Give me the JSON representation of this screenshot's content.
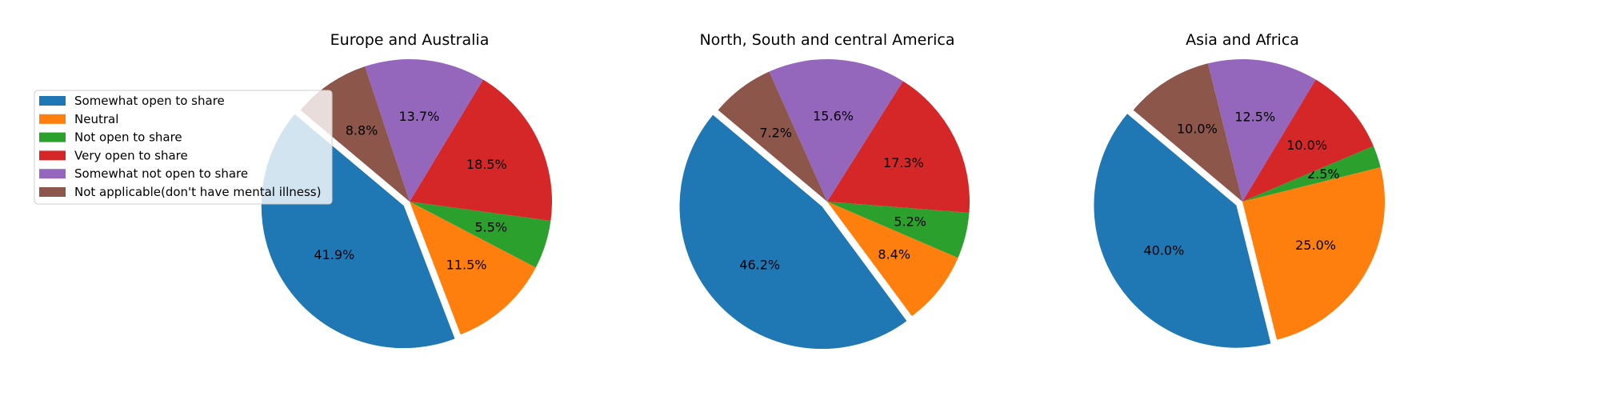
{
  "chart_data": [
    {
      "type": "pie",
      "title": "Europe and Australia",
      "categories": [
        "Somewhat open to share",
        "Neutral",
        "Not open to share",
        "Very open to share",
        "Somewhat not open to share",
        "Not applicable(don't have mental illness)"
      ],
      "values": [
        41.9,
        11.5,
        5.5,
        18.5,
        13.7,
        8.8
      ],
      "labels": [
        "41.9%",
        "11.5%",
        "5.5%",
        "18.5%",
        "13.7%",
        "8.8%"
      ],
      "start_angle_deg": 140,
      "explode": [
        0.05,
        0,
        0,
        0,
        0,
        0
      ]
    },
    {
      "type": "pie",
      "title": "North, South and central America",
      "categories": [
        "Somewhat open to share",
        "Neutral",
        "Not open to share",
        "Very open to share",
        "Somewhat not open to share",
        "Not applicable(don't have mental illness)"
      ],
      "values": [
        46.2,
        8.4,
        5.2,
        17.3,
        15.6,
        7.2
      ],
      "labels": [
        "46.2%",
        "8.4%",
        "5.2%",
        "17.3%",
        "15.6%",
        "7.2%"
      ],
      "start_angle_deg": 140,
      "explode": [
        0.05,
        0,
        0,
        0,
        0,
        0
      ]
    },
    {
      "type": "pie",
      "title": "Asia and Africa",
      "categories": [
        "Somewhat open to share",
        "Neutral",
        "Not open to share",
        "Very open to share",
        "Somewhat not open to share",
        "Not applicable(don't have mental illness)"
      ],
      "values": [
        40.0,
        25.0,
        2.5,
        10.0,
        12.5,
        10.0
      ],
      "labels": [
        "40.0%",
        "25.0%",
        "2.5%",
        "10.0%",
        "12.5%",
        "10.0%"
      ],
      "start_angle_deg": 140,
      "explode": [
        0.05,
        0,
        0,
        0,
        0,
        0
      ]
    }
  ],
  "legend": {
    "placement": "upper-left",
    "entries": [
      {
        "label": "Somewhat open to share",
        "color": "#1f77b4"
      },
      {
        "label": "Neutral",
        "color": "#ff7f0e"
      },
      {
        "label": "Not open to share",
        "color": "#2ca02c"
      },
      {
        "label": "Very open to share",
        "color": "#d62728"
      },
      {
        "label": "Somewhat not open to share",
        "color": "#9467bd"
      },
      {
        "label": "Not applicable(don't have mental illness)",
        "color": "#8c564b"
      }
    ]
  }
}
